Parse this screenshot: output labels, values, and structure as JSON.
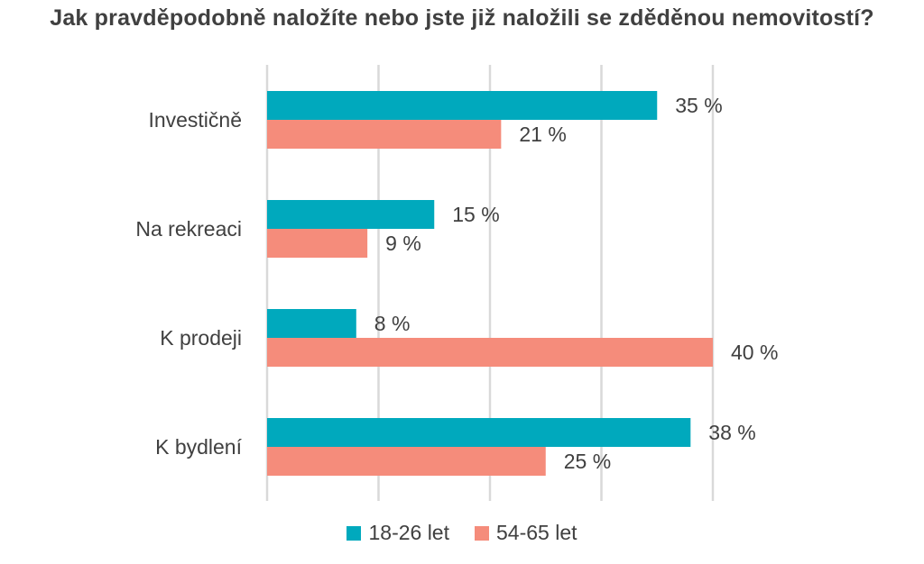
{
  "chart_data": {
    "type": "bar",
    "orientation": "horizontal",
    "title": "Jak pravděpodobně naložíte nebo jste již naložili se zděděnou nemovitostí?",
    "categories": [
      "Investičně",
      "Na rekreaci",
      "K prodeji",
      "K bydlení"
    ],
    "series": [
      {
        "name": "18-26 let",
        "color": "#00A9BD",
        "values": [
          35,
          15,
          8,
          38
        ],
        "labels": [
          "35 %",
          "15 %",
          "8 %",
          "38 %"
        ]
      },
      {
        "name": "54-65 let",
        "color": "#F58C7B",
        "values": [
          21,
          9,
          40,
          25
        ],
        "labels": [
          "21 %",
          "9 %",
          "40 %",
          "25 %"
        ]
      }
    ],
    "xlim": [
      0,
      40
    ],
    "grid": true,
    "legend": "bottom",
    "gridline_color": "#D9D9D9"
  }
}
